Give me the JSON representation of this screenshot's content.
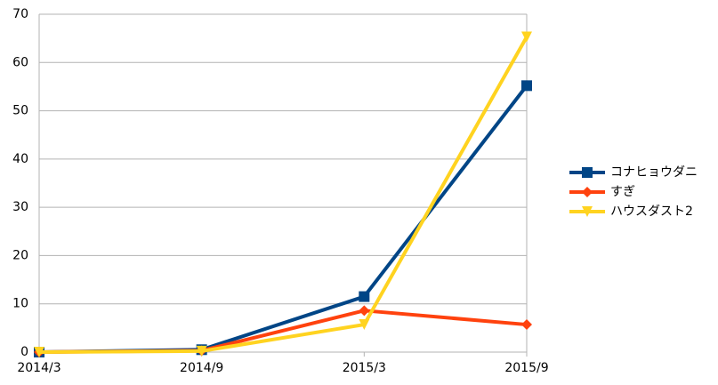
{
  "chart_data": {
    "type": "line",
    "categories": [
      "2014/3",
      "2014/9",
      "2015/3",
      "2015/9"
    ],
    "series": [
      {
        "name": "コナヒョウダニ",
        "color": "#004586",
        "marker": "square",
        "values": [
          0,
          0.5,
          11.5,
          55.2
        ]
      },
      {
        "name": "すぎ",
        "color": "#ff420e",
        "marker": "diamond",
        "values": [
          0,
          0.3,
          8.6,
          5.7
        ]
      },
      {
        "name": "ハウスダスト2",
        "color": "#ffd320",
        "marker": "triangle-down",
        "values": [
          0,
          0.2,
          5.7,
          65.3
        ]
      }
    ],
    "ylim": [
      0,
      70
    ],
    "yticks": [
      0,
      10,
      20,
      30,
      40,
      50,
      60,
      70
    ],
    "grid": true,
    "legend": "right"
  }
}
